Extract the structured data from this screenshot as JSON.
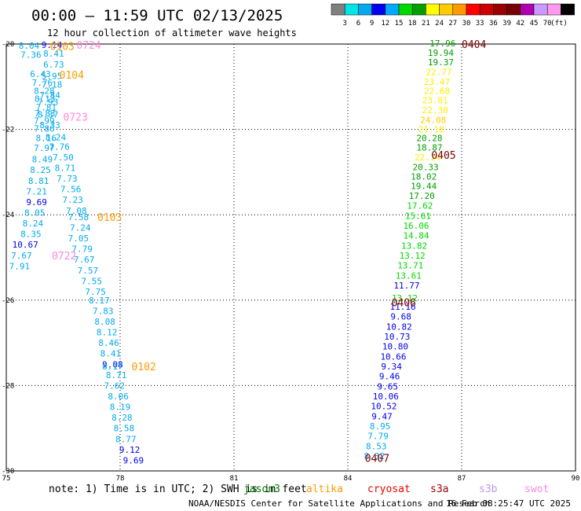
{
  "header": {
    "title": "00:00 – 11:59 UTC 02/13/2025",
    "subtitle": "12 hour collection of altimeter wave heights"
  },
  "legend": {
    "colors": [
      "#808080",
      "#00e5e5",
      "#00aaee",
      "#0000ee",
      "#00a8ff",
      "#00d800",
      "#00a000",
      "#ffff00",
      "#ffcc00",
      "#ff9900",
      "#ff0000",
      "#cc0000",
      "#990000",
      "#770000",
      "#b000b0",
      "#cc99ff",
      "#ff99ee",
      "#000000"
    ],
    "labels": [
      "3",
      "6",
      "9",
      "12",
      "15",
      "18",
      "21",
      "24",
      "27",
      "30",
      "33",
      "36",
      "39",
      "42",
      "45",
      "70"
    ],
    "unit": "(ft)"
  },
  "footer": {
    "note_prefix": "note:  1) Time is in UTC; 2) SWH is in feet",
    "satellites": [
      {
        "name": "jason3",
        "color": "#007700"
      },
      {
        "name": "altika",
        "color": "#ff9900"
      },
      {
        "name": "cryosat",
        "color": "#ee0000"
      },
      {
        "name": "s3a",
        "color": "#990000"
      },
      {
        "name": "s3b",
        "color": "#bb99ee"
      },
      {
        "name": "swot",
        "color": "#ff88dd"
      }
    ],
    "credit": "NOAA/NESDIS Center for Satellite Applications and Research",
    "timestamp": "16 Feb 08:25:47 UTC 2025"
  },
  "chart_data": {
    "type": "scatter",
    "title": "00:00 – 11:59 UTC 02/13/2025",
    "subtitle": "12 hour collection of altimeter wave heights",
    "xlim": [
      75,
      90
    ],
    "ylim": [
      -30,
      -20
    ],
    "xticks": [
      "75",
      "78",
      "81",
      "84",
      "87",
      "90"
    ],
    "yticks": [
      "-20",
      "-22",
      "-24",
      "-26",
      "-28",
      "-30"
    ],
    "x_label_values": [
      75,
      78,
      81,
      84,
      87,
      90
    ],
    "y_label_values": [
      -20,
      -22,
      -24,
      -26,
      -28,
      -30
    ],
    "grid": true,
    "pass_labels": [
      {
        "text": "0724",
        "x": 76.85,
        "y": -20.02,
        "color": "#ff88dd"
      },
      {
        "text": "0103",
        "x": 76.15,
        "y": -20.05,
        "color": "#ff9900"
      },
      {
        "text": "0104",
        "x": 76.4,
        "y": -20.72,
        "color": "#ff9900"
      },
      {
        "text": "0723",
        "x": 76.5,
        "y": -21.7,
        "color": "#ff88dd"
      },
      {
        "text": "0103",
        "x": 77.4,
        "y": -24.05,
        "color": "#ff9900"
      },
      {
        "text": "0722",
        "x": 76.2,
        "y": -24.95,
        "color": "#ff88dd"
      },
      {
        "text": "0102",
        "x": 78.3,
        "y": -27.55,
        "color": "#ff9900"
      },
      {
        "text": "0404",
        "x": 87.0,
        "y": -20.0,
        "color": "#770000"
      },
      {
        "text": "0405",
        "x": 86.2,
        "y": -22.6,
        "color": "#770000"
      },
      {
        "text": "0406",
        "x": 85.15,
        "y": -26.05,
        "color": "#770000"
      },
      {
        "text": "0407",
        "x": 84.45,
        "y": -29.7,
        "color": "#770000"
      }
    ],
    "series": [
      {
        "name": "0103",
        "color": "#ff9900",
        "points": [
          {
            "x": 75.6,
            "y": -20.04,
            "v": "8.04",
            "c": "#00aaee"
          },
          {
            "x": 75.65,
            "y": -20.25,
            "v": "7.36",
            "c": "#00aaee"
          },
          {
            "x": 75.9,
            "y": -20.7,
            "v": "6.43",
            "c": "#00aaee"
          },
          {
            "x": 75.95,
            "y": -20.9,
            "v": "7.76",
            "c": "#00aaee"
          },
          {
            "x": 76.0,
            "y": -21.1,
            "v": "8.28",
            "c": "#00aaee"
          },
          {
            "x": 76.02,
            "y": -21.28,
            "v": "8.13",
            "c": "#00aaee"
          },
          {
            "x": 76.05,
            "y": -21.48,
            "v": "7.81",
            "c": "#00aaee"
          },
          {
            "x": 76.02,
            "y": -21.62,
            "v": "7.83",
            "c": "#00aaee"
          },
          {
            "x": 76.0,
            "y": -21.8,
            "v": "7.99",
            "c": "#00aaee"
          },
          {
            "x": 76.0,
            "y": -21.98,
            "v": "7.86",
            "c": "#00aaee"
          },
          {
            "x": 76.05,
            "y": -22.2,
            "v": "8.16",
            "c": "#00aaee"
          },
          {
            "x": 76.0,
            "y": -22.43,
            "v": "7.97",
            "c": "#00aaee"
          },
          {
            "x": 75.95,
            "y": -22.7,
            "v": "8.49",
            "c": "#00aaee"
          },
          {
            "x": 75.9,
            "y": -22.95,
            "v": "8.25",
            "c": "#00aaee"
          },
          {
            "x": 75.85,
            "y": -23.2,
            "v": "8.81",
            "c": "#00aaee"
          },
          {
            "x": 75.8,
            "y": -23.45,
            "v": "7.21",
            "c": "#00aaee"
          },
          {
            "x": 75.8,
            "y": -23.7,
            "v": "9.69",
            "c": "#0000ee"
          },
          {
            "x": 75.75,
            "y": -23.95,
            "v": "8.05",
            "c": "#00aaee"
          },
          {
            "x": 75.7,
            "y": -24.2,
            "v": "8.24",
            "c": "#00aaee"
          },
          {
            "x": 75.65,
            "y": -24.45,
            "v": "8.35",
            "c": "#00aaee"
          },
          {
            "x": 75.5,
            "y": -24.7,
            "v": "10.67",
            "c": "#0000ee"
          },
          {
            "x": 75.4,
            "y": -24.95,
            "v": "7.67",
            "c": "#00aaee"
          },
          {
            "x": 75.35,
            "y": -25.2,
            "v": "7.91",
            "c": "#00aaee"
          }
        ]
      },
      {
        "name": "0723",
        "color": "#ff88dd",
        "points": [
          {
            "x": 76.2,
            "y": -20.02,
            "v": "9.14",
            "c": "#0000ee"
          },
          {
            "x": 76.25,
            "y": -20.22,
            "v": "8.41",
            "c": "#00aaee"
          },
          {
            "x": 76.25,
            "y": -20.48,
            "v": "6.73",
            "c": "#00aaee"
          },
          {
            "x": 76.2,
            "y": -20.75,
            "v": "5.95",
            "c": "#00aaee"
          },
          {
            "x": 76.2,
            "y": -20.95,
            "v": "7.18",
            "c": "#00aaee"
          },
          {
            "x": 76.15,
            "y": -21.2,
            "v": "7.84",
            "c": "#00aaee"
          },
          {
            "x": 76.1,
            "y": -21.35,
            "v": "7.93",
            "c": "#00aaee"
          },
          {
            "x": 76.1,
            "y": -21.65,
            "v": "8.37",
            "c": "#00aaee"
          },
          {
            "x": 76.15,
            "y": -21.9,
            "v": "8.33",
            "c": "#00aaee"
          },
          {
            "x": 76.3,
            "y": -22.18,
            "v": "8.24",
            "c": "#00aaee"
          },
          {
            "x": 76.4,
            "y": -22.4,
            "v": "7.76",
            "c": "#00aaee"
          },
          {
            "x": 76.5,
            "y": -22.65,
            "v": "7.50",
            "c": "#00aaee"
          },
          {
            "x": 76.55,
            "y": -22.9,
            "v": "8.71",
            "c": "#00aaee"
          },
          {
            "x": 76.6,
            "y": -23.15,
            "v": "7.73",
            "c": "#00aaee"
          },
          {
            "x": 76.7,
            "y": -23.4,
            "v": "7.56",
            "c": "#00aaee"
          },
          {
            "x": 76.75,
            "y": -23.65,
            "v": "7.23",
            "c": "#00aaee"
          },
          {
            "x": 76.85,
            "y": -23.9,
            "v": "7.08",
            "c": "#00aaee"
          },
          {
            "x": 76.9,
            "y": -24.05,
            "v": "7.58",
            "c": "#00aaee"
          },
          {
            "x": 76.95,
            "y": -24.3,
            "v": "7.24",
            "c": "#00aaee"
          },
          {
            "x": 76.9,
            "y": -24.55,
            "v": "7.05",
            "c": "#00aaee"
          },
          {
            "x": 77.0,
            "y": -24.8,
            "v": "7.79",
            "c": "#00aaee"
          },
          {
            "x": 77.05,
            "y": -25.05,
            "v": "7.67",
            "c": "#00aaee"
          },
          {
            "x": 77.15,
            "y": -25.3,
            "v": "7.57",
            "c": "#00aaee"
          },
          {
            "x": 77.25,
            "y": -25.55,
            "v": "7.55",
            "c": "#00aaee"
          },
          {
            "x": 77.35,
            "y": -25.8,
            "v": "7.75",
            "c": "#00aaee"
          },
          {
            "x": 77.45,
            "y": -26.0,
            "v": "8.17",
            "c": "#00aaee"
          },
          {
            "x": 77.55,
            "y": -26.25,
            "v": "7.83",
            "c": "#00aaee"
          },
          {
            "x": 77.6,
            "y": -26.5,
            "v": "8.08",
            "c": "#00aaee"
          },
          {
            "x": 77.65,
            "y": -26.75,
            "v": "8.12",
            "c": "#00aaee"
          },
          {
            "x": 77.7,
            "y": -27.0,
            "v": "8.46",
            "c": "#00aaee"
          },
          {
            "x": 77.75,
            "y": -27.25,
            "v": "8.41",
            "c": "#00aaee"
          },
          {
            "x": 77.8,
            "y": -27.5,
            "v": "9.08",
            "c": "#0000ee"
          },
          {
            "x": 77.8,
            "y": -27.55,
            "v": "8.17",
            "c": "#00aaee"
          },
          {
            "x": 77.9,
            "y": -27.75,
            "v": "8.71",
            "c": "#00aaee"
          },
          {
            "x": 77.85,
            "y": -28.0,
            "v": "7.62",
            "c": "#00aaee"
          },
          {
            "x": 77.95,
            "y": -28.25,
            "v": "8.06",
            "c": "#00aaee"
          },
          {
            "x": 78.0,
            "y": -28.5,
            "v": "8.19",
            "c": "#00aaee"
          },
          {
            "x": 78.05,
            "y": -28.75,
            "v": "8.28",
            "c": "#00aaee"
          },
          {
            "x": 78.1,
            "y": -29.0,
            "v": "8.58",
            "c": "#00aaee"
          },
          {
            "x": 78.15,
            "y": -29.25,
            "v": "8.77",
            "c": "#00aaee"
          },
          {
            "x": 78.25,
            "y": -29.5,
            "v": "9.12",
            "c": "#0000ee"
          },
          {
            "x": 78.35,
            "y": -29.75,
            "v": "9.69",
            "c": "#0000ee"
          }
        ]
      },
      {
        "name": "0405",
        "color": "#770000",
        "points": [
          {
            "x": 86.5,
            "y": -19.98,
            "v": "17.96",
            "c": "#00a000"
          },
          {
            "x": 86.45,
            "y": -20.2,
            "v": "19.94",
            "c": "#00a000"
          },
          {
            "x": 86.45,
            "y": -20.42,
            "v": "19.37",
            "c": "#00a000"
          },
          {
            "x": 86.4,
            "y": -20.65,
            "v": "22.77",
            "c": "#ffee00"
          },
          {
            "x": 86.35,
            "y": -20.88,
            "v": "23.47",
            "c": "#ffee00"
          },
          {
            "x": 86.35,
            "y": -21.1,
            "v": "22.68",
            "c": "#ffee00"
          },
          {
            "x": 86.3,
            "y": -21.32,
            "v": "23.01",
            "c": "#ffee00"
          },
          {
            "x": 86.3,
            "y": -21.55,
            "v": "22.30",
            "c": "#ffee00"
          },
          {
            "x": 86.25,
            "y": -21.78,
            "v": "24.08",
            "c": "#ffcc00"
          },
          {
            "x": 86.2,
            "y": -22.0,
            "v": "21.18",
            "c": "#ffee00"
          },
          {
            "x": 86.15,
            "y": -22.2,
            "v": "20.28",
            "c": "#00a000"
          },
          {
            "x": 86.15,
            "y": -22.42,
            "v": "18.87",
            "c": "#00a000"
          },
          {
            "x": 86.1,
            "y": -22.65,
            "v": "22.14",
            "c": "#ffee00"
          },
          {
            "x": 86.05,
            "y": -22.88,
            "v": "20.33",
            "c": "#00a000"
          },
          {
            "x": 86.0,
            "y": -23.1,
            "v": "18.02",
            "c": "#00a000"
          },
          {
            "x": 86.0,
            "y": -23.32,
            "v": "19.44",
            "c": "#00a000"
          },
          {
            "x": 85.95,
            "y": -23.55,
            "v": "17.20",
            "c": "#00a000"
          },
          {
            "x": 85.9,
            "y": -23.78,
            "v": "17.62",
            "c": "#00d800"
          },
          {
            "x": 85.85,
            "y": -24.02,
            "v": "15.61",
            "c": "#00d800"
          },
          {
            "x": 85.8,
            "y": -24.25,
            "v": "16.06",
            "c": "#00d800"
          },
          {
            "x": 85.8,
            "y": -24.48,
            "v": "14.84",
            "c": "#00d800"
          },
          {
            "x": 85.75,
            "y": -24.72,
            "v": "13.82",
            "c": "#00d800"
          },
          {
            "x": 85.7,
            "y": -24.95,
            "v": "13.12",
            "c": "#00d800"
          },
          {
            "x": 85.65,
            "y": -25.18,
            "v": "13.71",
            "c": "#00d800"
          },
          {
            "x": 85.6,
            "y": -25.42,
            "v": "13.61",
            "c": "#00d800"
          },
          {
            "x": 85.55,
            "y": -25.65,
            "v": "11.77",
            "c": "#0000ee"
          },
          {
            "x": 85.5,
            "y": -25.95,
            "v": "13.12",
            "c": "#00d800"
          },
          {
            "x": 85.45,
            "y": -26.15,
            "v": "11.16",
            "c": "#0000ee"
          },
          {
            "x": 85.4,
            "y": -26.38,
            "v": "9.68",
            "c": "#0000ee"
          },
          {
            "x": 85.35,
            "y": -26.62,
            "v": "10.82",
            "c": "#0000ee"
          },
          {
            "x": 85.3,
            "y": -26.85,
            "v": "10.73",
            "c": "#0000ee"
          },
          {
            "x": 85.25,
            "y": -27.08,
            "v": "10.80",
            "c": "#0000ee"
          },
          {
            "x": 85.2,
            "y": -27.32,
            "v": "10.66",
            "c": "#0000ee"
          },
          {
            "x": 85.15,
            "y": -27.55,
            "v": "9.34",
            "c": "#0000ee"
          },
          {
            "x": 85.1,
            "y": -27.78,
            "v": "9.46",
            "c": "#0000ee"
          },
          {
            "x": 85.05,
            "y": -28.02,
            "v": "9.65",
            "c": "#0000ee"
          },
          {
            "x": 85.0,
            "y": -28.25,
            "v": "10.06",
            "c": "#0000ee"
          },
          {
            "x": 84.95,
            "y": -28.48,
            "v": "10.52",
            "c": "#0000ee"
          },
          {
            "x": 84.9,
            "y": -28.72,
            "v": "9.47",
            "c": "#0000ee"
          },
          {
            "x": 84.85,
            "y": -28.95,
            "v": "8.95",
            "c": "#00aaee"
          },
          {
            "x": 84.8,
            "y": -29.18,
            "v": "7.79",
            "c": "#00aaee"
          },
          {
            "x": 84.75,
            "y": -29.42,
            "v": "8.53",
            "c": "#00aaee"
          },
          {
            "x": 84.7,
            "y": -29.65,
            "v": "8.32",
            "c": "#00aaee"
          }
        ]
      }
    ]
  }
}
